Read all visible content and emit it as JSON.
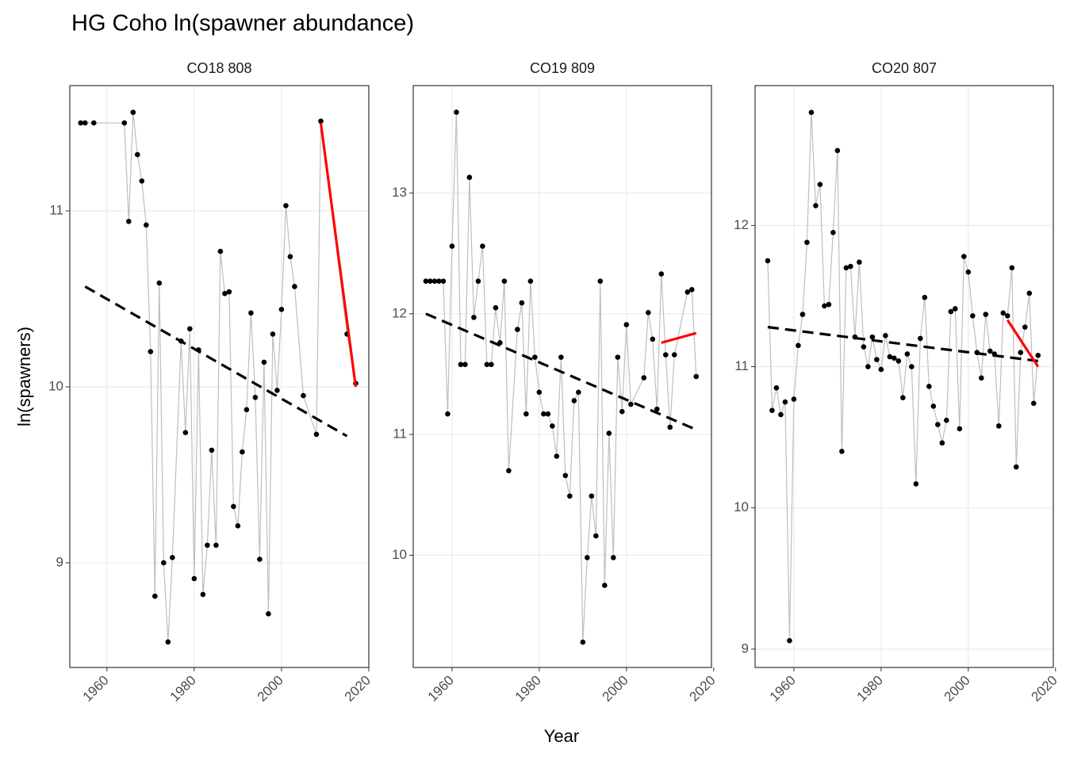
{
  "title": "HG Coho ln(spawner abundance)",
  "x_label": "Year",
  "y_label": "ln(spawners)",
  "chart_data": [
    {
      "type": "line",
      "subtitle": "CO18 808",
      "xlim": [
        1951.5,
        2020
      ],
      "ylim": [
        8.405,
        11.712
      ],
      "xticks": [
        1960,
        1980,
        2000,
        2020
      ],
      "yticks": [
        9,
        10,
        11
      ],
      "grid": true,
      "series": [
        {
          "color": "#bebebe",
          "markers": true,
          "linestyle": "solid",
          "x": [
            1954,
            1955,
            1957,
            1964,
            1965,
            1966,
            1967,
            1968,
            1969,
            1970,
            1971,
            1972,
            1973,
            1974,
            1975,
            1977,
            1978,
            1979,
            1980,
            1981,
            1982,
            1983,
            1984,
            1985,
            1986,
            1987,
            1988,
            1989,
            1990,
            1991,
            1992,
            1993,
            1994,
            1995,
            1996,
            1997,
            1998,
            1999,
            2000,
            2001,
            2002,
            2003,
            2005,
            2008,
            2009,
            2015,
            2017
          ],
          "values": [
            11.5,
            11.5,
            11.5,
            11.5,
            10.94,
            11.56,
            11.32,
            11.17,
            10.92,
            10.2,
            8.81,
            10.59,
            9.0,
            8.55,
            9.03,
            10.26,
            9.74,
            10.33,
            8.91,
            10.21,
            8.82,
            9.1,
            9.64,
            9.1,
            10.77,
            10.53,
            10.54,
            9.32,
            9.21,
            9.63,
            9.87,
            10.42,
            9.94,
            9.02,
            10.14,
            8.71,
            10.3,
            9.98,
            10.44,
            11.03,
            10.74,
            10.57,
            9.95,
            9.73,
            11.51,
            10.3,
            10.02
          ]
        },
        {
          "color": "#000000",
          "markers": false,
          "linestyle": "dashed",
          "x": [
            1955,
            2015
          ],
          "values": [
            10.57,
            9.72
          ]
        },
        {
          "color": "#ff0000",
          "markers": false,
          "linestyle": "solid",
          "x": [
            2009,
            2017
          ],
          "values": [
            11.5,
            10.0
          ]
        }
      ]
    },
    {
      "type": "line",
      "subtitle": "CO19 809",
      "xlim": [
        1951.1,
        2019.5
      ],
      "ylim": [
        9.07,
        13.89
      ],
      "xticks": [
        1960,
        1980,
        2000,
        2020
      ],
      "yticks": [
        10,
        11,
        12,
        13
      ],
      "grid": true,
      "series": [
        {
          "color": "#bebebe",
          "markers": true,
          "linestyle": "solid",
          "x": [
            1954,
            1955,
            1956,
            1957,
            1958,
            1959,
            1960,
            1961,
            1962,
            1963,
            1964,
            1965,
            1966,
            1967,
            1968,
            1969,
            1970,
            1971,
            1972,
            1973,
            1975,
            1976,
            1977,
            1978,
            1979,
            1980,
            1981,
            1982,
            1983,
            1984,
            1985,
            1986,
            1987,
            1988,
            1989,
            1990,
            1991,
            1992,
            1993,
            1994,
            1995,
            1996,
            1997,
            1998,
            1999,
            2000,
            2001,
            2004,
            2005,
            2006,
            2007,
            2008,
            2009,
            2010,
            2011,
            2014,
            2015,
            2016
          ],
          "values": [
            12.27,
            12.27,
            12.27,
            12.27,
            12.27,
            11.17,
            12.56,
            13.67,
            11.58,
            11.58,
            13.13,
            11.97,
            12.27,
            12.56,
            11.58,
            11.58,
            12.05,
            11.76,
            12.27,
            10.7,
            11.87,
            12.09,
            11.17,
            12.27,
            11.64,
            11.35,
            11.17,
            11.17,
            11.07,
            10.82,
            11.64,
            10.66,
            10.49,
            11.28,
            11.35,
            9.28,
            9.98,
            10.49,
            10.16,
            12.27,
            9.75,
            11.01,
            9.98,
            11.64,
            11.19,
            11.91,
            11.25,
            11.47,
            12.01,
            11.79,
            11.21,
            12.33,
            11.66,
            11.06,
            11.66,
            12.18,
            12.2,
            11.48
          ]
        },
        {
          "color": "#000000",
          "markers": false,
          "linestyle": "dashed",
          "x": [
            1954,
            2016
          ],
          "values": [
            12.0,
            11.04
          ]
        },
        {
          "color": "#ff0000",
          "markers": false,
          "linestyle": "solid",
          "x": [
            2008,
            2016
          ],
          "values": [
            11.76,
            11.84
          ]
        }
      ]
    },
    {
      "type": "line",
      "subtitle": "CO20 807",
      "xlim": [
        1951.1,
        2019.5
      ],
      "ylim": [
        8.87,
        12.99
      ],
      "xticks": [
        1960,
        1980,
        2000,
        2020
      ],
      "yticks": [
        9,
        10,
        11,
        12
      ],
      "grid": true,
      "series": [
        {
          "color": "#bebebe",
          "markers": true,
          "linestyle": "solid",
          "x": [
            1954,
            1955,
            1956,
            1957,
            1958,
            1959,
            1960,
            1961,
            1962,
            1963,
            1964,
            1965,
            1966,
            1967,
            1968,
            1969,
            1970,
            1971,
            1972,
            1973,
            1974,
            1975,
            1976,
            1977,
            1978,
            1979,
            1980,
            1981,
            1982,
            1983,
            1984,
            1985,
            1986,
            1987,
            1988,
            1989,
            1990,
            1991,
            1992,
            1993,
            1994,
            1995,
            1996,
            1997,
            1998,
            1999,
            2000,
            2001,
            2002,
            2003,
            2004,
            2005,
            2006,
            2007,
            2008,
            2009,
            2010,
            2011,
            2012,
            2013,
            2014,
            2015,
            2016
          ],
          "values": [
            11.75,
            10.69,
            10.85,
            10.66,
            10.75,
            9.06,
            10.77,
            11.15,
            11.37,
            11.88,
            12.8,
            12.14,
            12.29,
            11.43,
            11.44,
            11.95,
            12.53,
            10.4,
            11.7,
            11.71,
            11.21,
            11.74,
            11.14,
            11.0,
            11.21,
            11.05,
            10.98,
            11.22,
            11.07,
            11.06,
            11.04,
            10.78,
            11.09,
            11.0,
            10.17,
            11.2,
            11.49,
            10.86,
            10.72,
            10.59,
            10.46,
            10.62,
            11.39,
            11.41,
            10.56,
            11.78,
            11.67,
            11.36,
            11.1,
            10.92,
            11.37,
            11.11,
            11.09,
            10.58,
            11.38,
            11.36,
            11.7,
            10.29,
            11.1,
            11.28,
            11.52,
            10.74,
            11.08
          ]
        },
        {
          "color": "#000000",
          "markers": false,
          "linestyle": "dashed",
          "x": [
            1954,
            2016
          ],
          "values": [
            11.28,
            11.04
          ]
        },
        {
          "color": "#ff0000",
          "markers": false,
          "linestyle": "solid",
          "x": [
            2009,
            2016
          ],
          "values": [
            11.33,
            11.0
          ]
        }
      ]
    }
  ]
}
